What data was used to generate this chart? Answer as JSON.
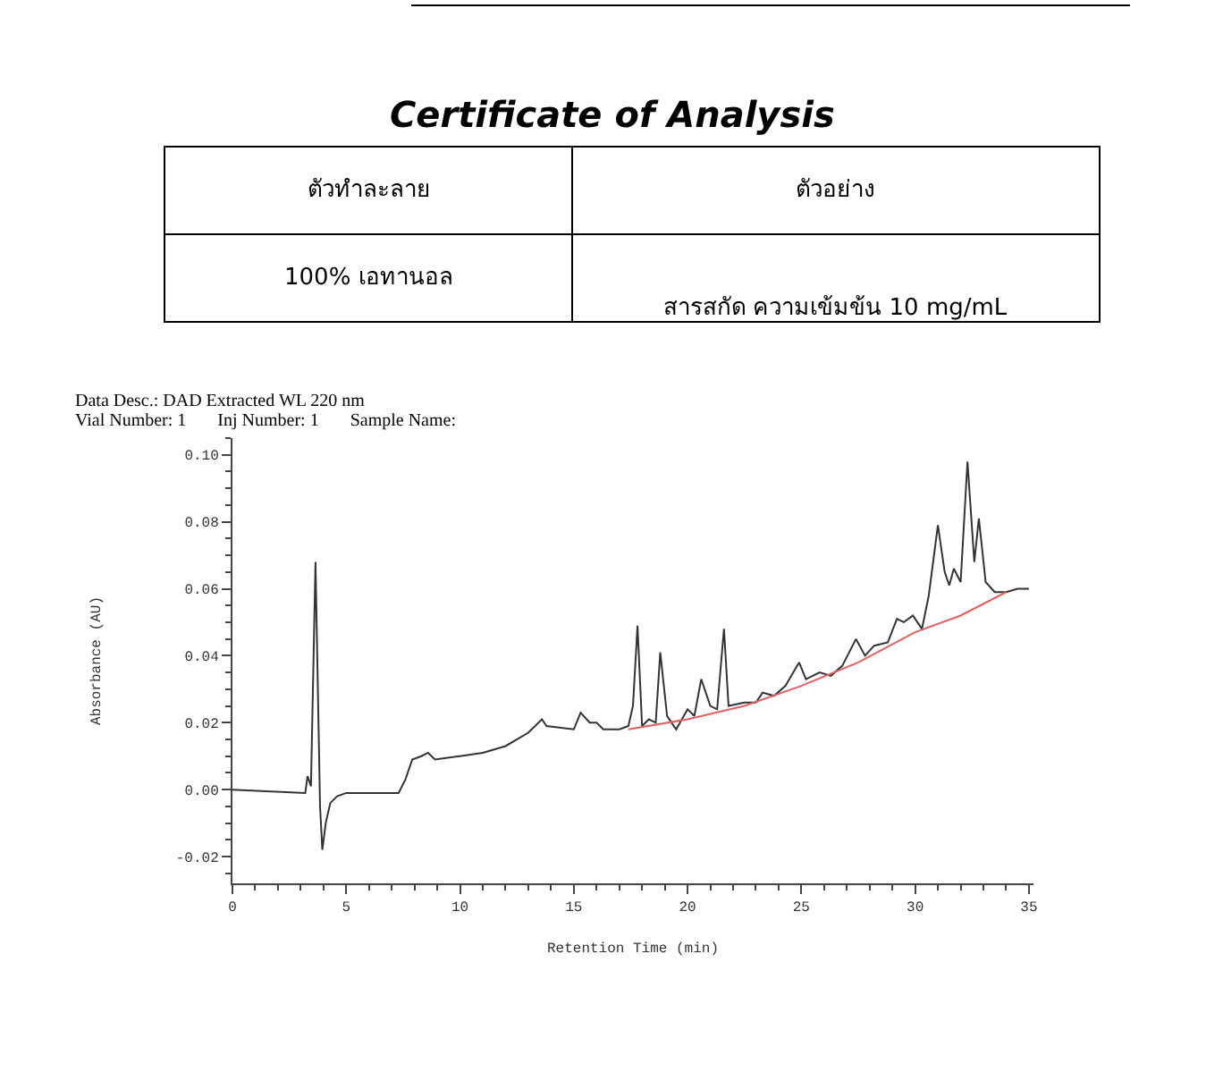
{
  "chart_data": {
    "type": "line",
    "title": "Certificate of Analysis",
    "xlabel": "Retention Time (min)",
    "ylabel": "Absorbance (AU)",
    "annotations": [
      "ตัวทำละลาย",
      "ตัวอย่าง",
      "100% เอทานอล",
      "สารสกัด ความเข้มข้น 10 mg/mL",
      "Data Desc.: DAD Extracted WL 220 nm",
      "Vial Number: 1       Inj Number: 1       Sample Name:"
    ],
    "series": [
      {
        "color": "#333333",
        "x": [
          0,
          3.2,
          3.3,
          3.45,
          3.65,
          3.85,
          3.95,
          4.1,
          4.3,
          4.6,
          5,
          7.3,
          7.6,
          7.9,
          8.3,
          8.6,
          8.9,
          10,
          11,
          12,
          13,
          13.6,
          13.8,
          15,
          15.3,
          15.7,
          16.0,
          16.3,
          17.0,
          17.4,
          17.6,
          17.8,
          18.0,
          18.3,
          18.6,
          18.8,
          19.1,
          19.5,
          20.0,
          20.3,
          20.6,
          21.0,
          21.3,
          21.6,
          21.8,
          22.5,
          23.0,
          23.3,
          23.8,
          24.3,
          24.9,
          25.2,
          25.8,
          26.3,
          26.8,
          27.4,
          27.8,
          28.2,
          28.8,
          29.2,
          29.5,
          29.9,
          30.3,
          30.6,
          31.0,
          31.3,
          31.5,
          31.7,
          32.0,
          32.3,
          32.6,
          32.8,
          33.1,
          33.5,
          34.0,
          34.5,
          35.0
        ],
        "values": [
          0.0,
          -0.001,
          0.004,
          0.001,
          0.068,
          -0.005,
          -0.018,
          -0.01,
          -0.004,
          -0.002,
          -0.001,
          -0.001,
          0.003,
          0.009,
          0.01,
          0.011,
          0.009,
          0.01,
          0.011,
          0.013,
          0.017,
          0.021,
          0.019,
          0.018,
          0.023,
          0.02,
          0.02,
          0.018,
          0.018,
          0.019,
          0.025,
          0.049,
          0.019,
          0.021,
          0.02,
          0.041,
          0.022,
          0.018,
          0.024,
          0.022,
          0.033,
          0.025,
          0.024,
          0.048,
          0.025,
          0.026,
          0.026,
          0.029,
          0.028,
          0.031,
          0.038,
          0.033,
          0.035,
          0.034,
          0.037,
          0.045,
          0.04,
          0.043,
          0.044,
          0.051,
          0.05,
          0.052,
          0.048,
          0.058,
          0.079,
          0.065,
          0.061,
          0.066,
          0.062,
          0.098,
          0.068,
          0.081,
          0.062,
          0.059,
          0.059,
          0.06,
          0.06
        ]
      },
      {
        "color": "#e06060",
        "x": [
          17.4,
          20,
          22.5,
          25,
          27.5,
          30,
          32,
          34
        ],
        "values": [
          0.018,
          0.021,
          0.025,
          0.031,
          0.038,
          0.047,
          0.052,
          0.059
        ]
      }
    ],
    "xlim": [
      0,
      35.2
    ],
    "xticks": [
      0,
      5,
      10,
      15,
      20,
      25,
      30,
      35
    ],
    "ylim": [
      -0.028,
      0.105
    ],
    "yticks": [
      {
        "value": -0.02,
        "label": "-0.02"
      },
      {
        "value": 0,
        "label": "0.00"
      },
      {
        "value": 0.02,
        "label": "0.02"
      },
      {
        "value": 0.04,
        "label": "0.04"
      },
      {
        "value": 0.06,
        "label": "0.06"
      },
      {
        "value": 0.08,
        "label": "0.08"
      },
      {
        "value": 0.1,
        "label": "0.10"
      }
    ],
    "marker": "none",
    "line_style": "solid"
  }
}
